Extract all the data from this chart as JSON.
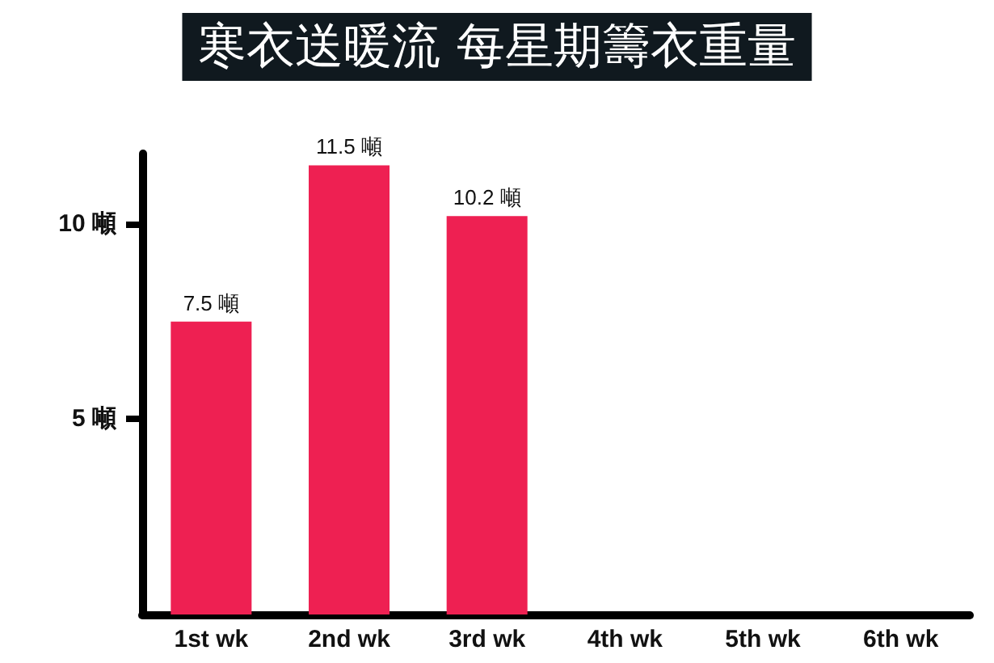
{
  "chart_data": {
    "type": "bar",
    "title": "寒衣送暖流 每星期籌衣重量",
    "categories": [
      "1st wk",
      "2nd wk",
      "3rd wk",
      "4th wk",
      "5th wk",
      "6th wk"
    ],
    "values": [
      7.5,
      11.5,
      10.2,
      null,
      null,
      null
    ],
    "value_labels": [
      "7.5 噸",
      "11.5 噸",
      "10.2 噸",
      null,
      null,
      null
    ],
    "color": "#ee2052",
    "ylim": [
      0,
      11.8
    ],
    "yticks": [
      {
        "value": 5,
        "label": "5 噸"
      },
      {
        "value": 10,
        "label": "10 噸"
      }
    ],
    "grid": false
  }
}
